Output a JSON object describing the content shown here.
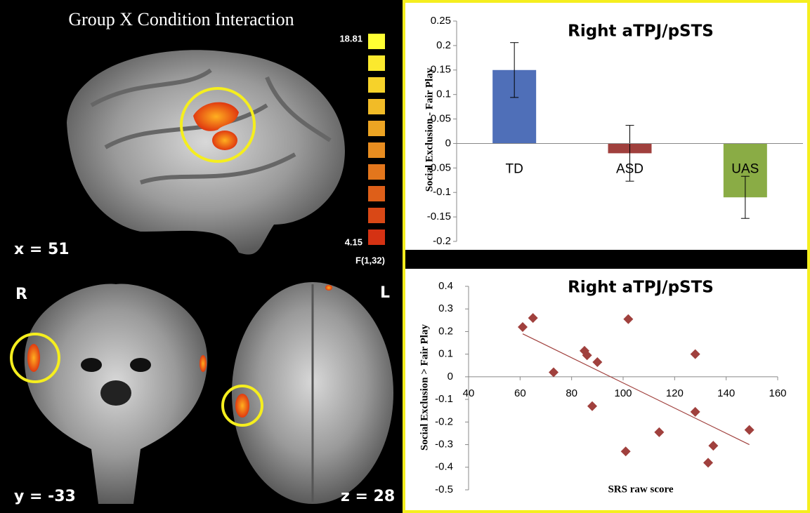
{
  "image_panel": {
    "title": "Group X Condition Interaction",
    "colorbar_max": "18.81",
    "colorbar_min": "4.15",
    "colorbar_label": "F(1,32)",
    "sagittal_label": "x = 51",
    "right_label": "R",
    "left_label": "L",
    "coronal_label": "y = -33",
    "axial_label": "z = 28"
  },
  "chart_data": [
    {
      "type": "bar",
      "title": "Right aTPJ/pSTS",
      "y_label": "Social Exclusion - Fair Play",
      "categories": [
        "TD",
        "ASD",
        "UAS"
      ],
      "values": [
        0.15,
        -0.02,
        -0.11
      ],
      "errors": [
        0.056,
        0.057,
        0.043
      ],
      "colors": [
        "#4f6fb8",
        "#a0403d",
        "#8aac45"
      ],
      "ylim": [
        -0.2,
        0.25
      ],
      "yticks": [
        0.25,
        0.2,
        0.15,
        0.1,
        0.05,
        0,
        -0.05,
        -0.1,
        -0.15,
        -0.2
      ]
    },
    {
      "type": "scatter",
      "title": "Right aTPJ/pSTS",
      "y_label": "Social Exclusion > Fair Play",
      "x_label": "SRS raw score",
      "x": [
        61,
        65,
        73,
        85,
        86,
        90,
        88,
        102,
        101,
        114,
        128,
        128,
        133,
        135,
        149
      ],
      "y": [
        0.22,
        0.26,
        0.02,
        0.115,
        0.095,
        0.065,
        -0.13,
        0.255,
        -0.33,
        -0.245,
        0.1,
        -0.155,
        -0.38,
        -0.305,
        -0.235
      ],
      "color": "#a0403d",
      "trendline": {
        "x": [
          61,
          149
        ],
        "y": [
          0.19,
          -0.3
        ]
      },
      "xlim": [
        40,
        160
      ],
      "xticks": [
        40,
        60,
        80,
        100,
        120,
        140,
        160
      ],
      "ylim": [
        -0.5,
        0.4
      ],
      "yticks": [
        0.4,
        0.3,
        0.2,
        0.1,
        0,
        -0.1,
        -0.2,
        -0.3,
        -0.4,
        -0.5
      ]
    }
  ]
}
